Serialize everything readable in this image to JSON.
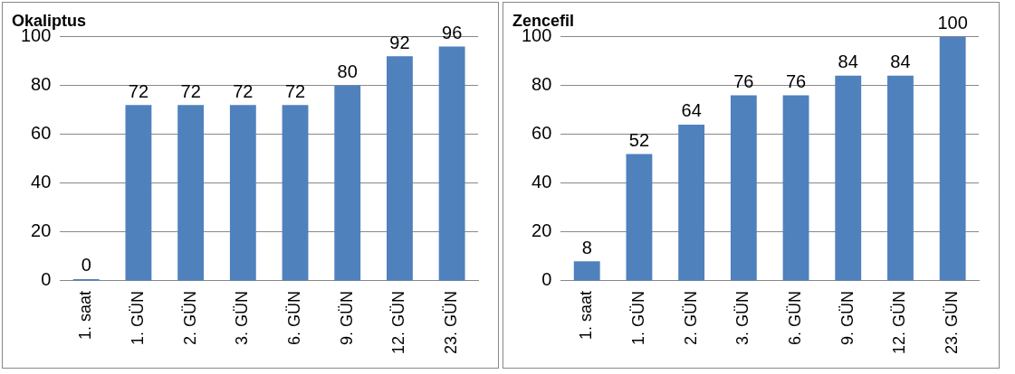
{
  "chart_data": [
    {
      "type": "bar",
      "title": "Okaliptus",
      "categories": [
        "1. saat",
        "1. GÜN",
        "2. GÜN",
        "3. GÜN",
        "6. GÜN",
        "9. GÜN",
        "12. GÜN",
        "23. GÜN"
      ],
      "values": [
        0,
        72,
        72,
        72,
        72,
        80,
        92,
        96
      ],
      "color": "#4f81bd",
      "ylim": [
        0,
        100
      ],
      "yticks": [
        0,
        20,
        40,
        60,
        80,
        100
      ],
      "grid": "y",
      "data_labels": true
    },
    {
      "type": "bar",
      "title": "Zencefil",
      "categories": [
        "1. saat",
        "1. GÜN",
        "2. GÜN",
        "3. GÜN",
        "6. GÜN",
        "9. GÜN",
        "12. GÜN",
        "23. GÜN"
      ],
      "values": [
        8,
        52,
        64,
        76,
        76,
        84,
        84,
        100
      ],
      "color": "#4f81bd",
      "ylim": [
        0,
        100
      ],
      "yticks": [
        0,
        20,
        40,
        60,
        80,
        100
      ],
      "grid": "y",
      "data_labels": true
    }
  ]
}
